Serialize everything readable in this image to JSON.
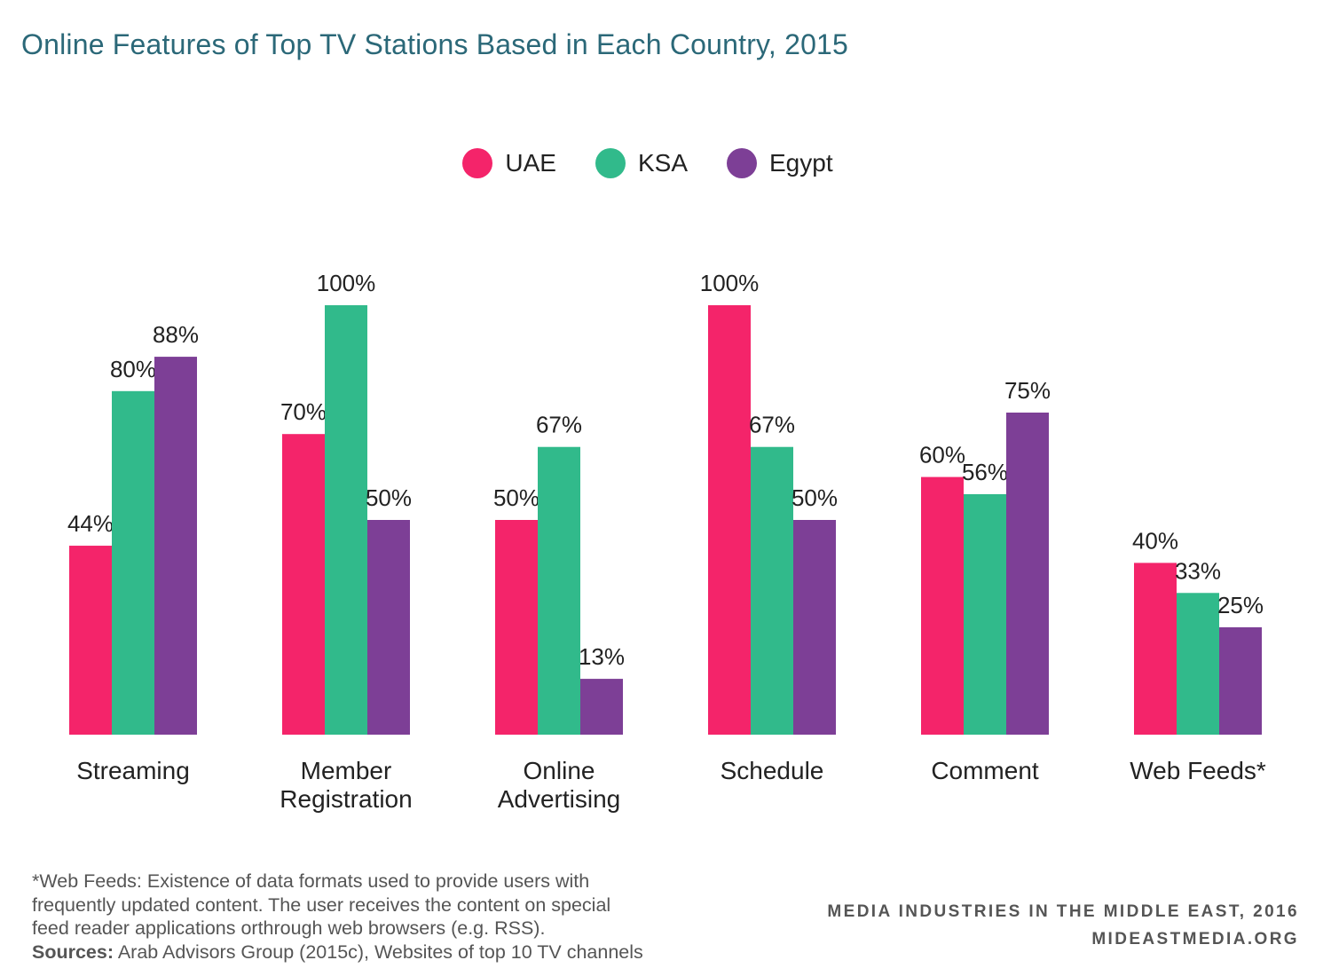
{
  "chart_data": {
    "type": "bar",
    "title": "Online Features of Top TV Stations Based in Each Country, 2015",
    "categories": [
      [
        "Streaming"
      ],
      [
        "Member",
        "Registration"
      ],
      [
        "Online",
        "Advertising"
      ],
      [
        "Schedule"
      ],
      [
        "Comment"
      ],
      [
        "Web Feeds*"
      ]
    ],
    "series": [
      {
        "name": "UAE",
        "color": "#f4246a",
        "values": [
          44,
          70,
          50,
          100,
          60,
          40
        ],
        "labels": [
          "44%",
          "70%",
          "50%",
          "100%",
          "60%",
          "40%"
        ]
      },
      {
        "name": "KSA",
        "color": "#31ba8b",
        "values": [
          80,
          100,
          67,
          67,
          56,
          33
        ],
        "labels": [
          "80%",
          "100%",
          "67%",
          "67%",
          "56%",
          "33%"
        ]
      },
      {
        "name": "Egypt",
        "color": "#7d3f96",
        "values": [
          88,
          50,
          13,
          50,
          75,
          25
        ],
        "labels": [
          "88%",
          "50%",
          "13%",
          "50%",
          "75%",
          "25%"
        ]
      }
    ],
    "ylim": [
      0,
      100
    ],
    "grid": false,
    "legend_position": "top-center",
    "value_labels_shown": true
  },
  "footnote": {
    "lines": [
      "*Web Feeds: Existence of data formats used to provide users with",
      "frequently updated content. The user receives the content on special",
      "feed reader applications orthrough web browsers (e.g. RSS)."
    ],
    "sources_label": "Sources:",
    "sources_text": "Arab Advisors Group (2015c), Websites of top 10 TV channels"
  },
  "credits": {
    "line1": "MEDIA INDUSTRIES IN THE MIDDLE EAST, 2016",
    "line2": "MIDEASTMEDIA.ORG"
  }
}
